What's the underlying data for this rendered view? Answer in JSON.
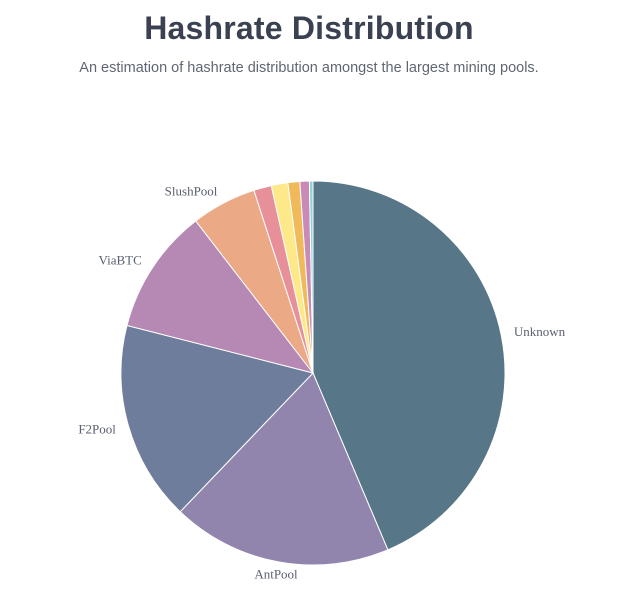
{
  "header": {
    "title": "Hashrate Distribution",
    "subtitle": "An estimation of hashrate distribution amongst the largest mining pools."
  },
  "chart_data": {
    "type": "pie",
    "title": "Hashrate Distribution",
    "subtitle": "An estimation of hashrate distribution amongst the largest mining pools.",
    "legend": "none",
    "slices": [
      {
        "name": "Unknown",
        "value": 43.8,
        "color": "#577789",
        "show_label": true
      },
      {
        "name": "AntPool",
        "value": 18.6,
        "color": "#9185ad",
        "show_label": true
      },
      {
        "name": "F2Pool",
        "value": 16.9,
        "color": "#6e7d9b",
        "show_label": true
      },
      {
        "name": "ViaBTC",
        "value": 10.6,
        "color": "#b589b4",
        "show_label": true
      },
      {
        "name": "SlushPool",
        "value": 5.5,
        "color": "#eca985",
        "show_label": true
      },
      {
        "name": "",
        "value": 1.5,
        "color": "#e8909a",
        "show_label": false
      },
      {
        "name": "",
        "value": 1.4,
        "color": "#fde88a",
        "show_label": false
      },
      {
        "name": "",
        "value": 1.0,
        "color": "#f0b95a",
        "show_label": false
      },
      {
        "name": "",
        "value": 0.8,
        "color": "#c98bb6",
        "show_label": false
      },
      {
        "name": "",
        "value": 0.3,
        "color": "#8ed5d8",
        "show_label": false
      }
    ]
  }
}
